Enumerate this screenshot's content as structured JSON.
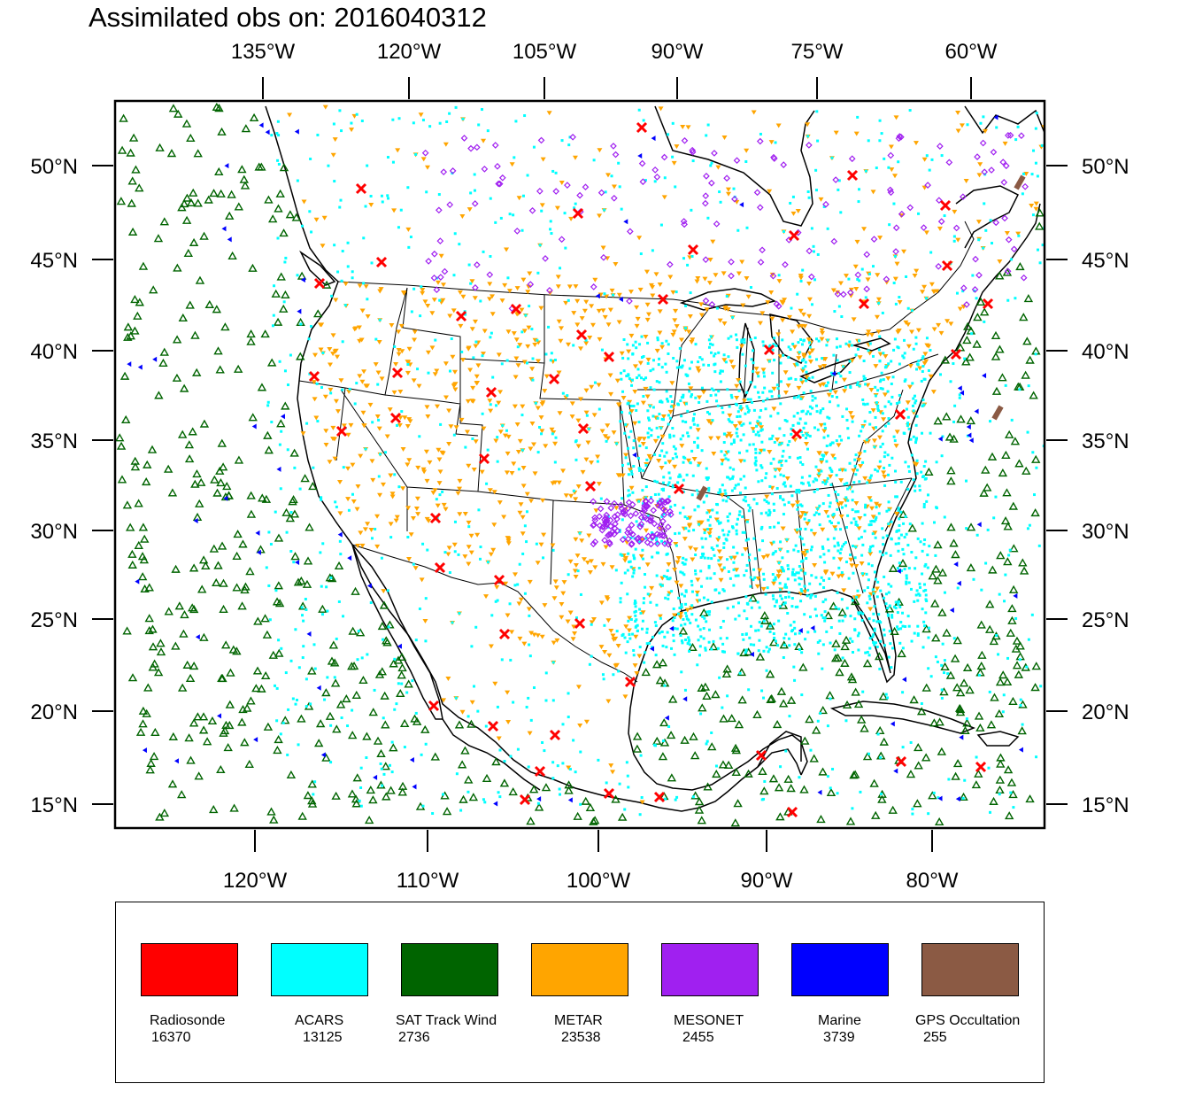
{
  "title": "Assimilated obs on: 2016040312",
  "map": {
    "projection": "lambert-conformal",
    "top_axis_labels": [
      "135°W",
      "120°W",
      "105°W",
      "90°W",
      "75°W",
      "60°W"
    ],
    "bottom_axis_labels": [
      "120°W",
      "110°W",
      "100°W",
      "90°W",
      "80°W"
    ],
    "left_axis_labels": [
      "50°N",
      "45°N",
      "40°N",
      "35°N",
      "30°N",
      "25°N",
      "20°N",
      "15°N"
    ],
    "right_axis_labels": [
      "50°N",
      "45°N",
      "40°N",
      "35°N",
      "30°N",
      "25°N",
      "20°N",
      "15°N"
    ]
  },
  "legend": [
    {
      "name": "Radiosonde",
      "count": "16370",
      "color": "#ff0000",
      "marker": "x-cross"
    },
    {
      "name": "ACARS",
      "count": "13125",
      "color": "#00ffff",
      "marker": "dot"
    },
    {
      "name": "SAT Track Wind",
      "count": "2736",
      "color": "#006400",
      "marker": "triangle-up-open"
    },
    {
      "name": "METAR",
      "count": "23538",
      "color": "#ffa500",
      "marker": "triangle-down"
    },
    {
      "name": "MESONET",
      "count": "2455",
      "color": "#a020f0",
      "marker": "diamond-open"
    },
    {
      "name": "Marine",
      "count": "3739",
      "color": "#0000ff",
      "marker": "triangle-left"
    },
    {
      "name": "GPS Occultation",
      "count": "255",
      "color": "#8b5a44",
      "marker": "segment"
    }
  ]
}
